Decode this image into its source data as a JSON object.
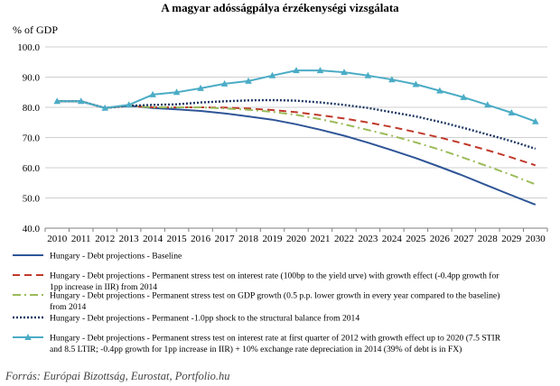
{
  "chart_data": {
    "type": "line",
    "title": "A magyar adósságpálya érzékenységi vizsgálata",
    "ylabel": "% of GDP",
    "xlabel": "",
    "ylim": [
      40.0,
      100.0
    ],
    "yticks": [
      "40.0",
      "50.0",
      "60.0",
      "70.0",
      "80.0",
      "90.0",
      "100.0"
    ],
    "ytick_values": [
      40,
      50,
      60,
      70,
      80,
      90,
      100
    ],
    "grid": true,
    "legend_position": "bottom",
    "x": [
      "2010",
      "2011",
      "2012",
      "2013",
      "2014",
      "2015",
      "2016",
      "2017",
      "2018",
      "2019",
      "2020",
      "2021",
      "2022",
      "2023",
      "2024",
      "2025",
      "2026",
      "2027",
      "2028",
      "2029",
      "2030"
    ],
    "series": [
      {
        "name": "Hungary - Debt projections - Baseline",
        "legend_lines": [
          "Hungary - Debt projections - Baseline"
        ],
        "color": "#2f5597",
        "style": "solid",
        "values": [
          82.0,
          82.0,
          79.8,
          80.5,
          79.8,
          79.3,
          78.8,
          78.0,
          77.0,
          75.9,
          74.4,
          72.6,
          70.6,
          68.3,
          65.8,
          63.2,
          60.3,
          57.3,
          54.1,
          50.9,
          47.8
        ]
      },
      {
        "name": "Hungary - Debt projections - Permanent stress test on interest rate (100bp to the yield urve) with growth effect (-0.4pp growth for 1pp increase in IIR) from 2014",
        "legend_lines": [
          "Hungary - Debt projections - Permanent stress test on interest rate (100bp to the yield urve) with growth effect (-0.4pp growth for",
          "1pp increase in IIR) from 2014"
        ],
        "color": "#c0392b",
        "style": "dashed",
        "values": [
          82.0,
          82.0,
          79.8,
          80.5,
          80.0,
          80.0,
          80.0,
          79.9,
          79.6,
          79.1,
          78.4,
          77.4,
          76.3,
          75.0,
          73.5,
          71.8,
          70.0,
          68.0,
          65.8,
          63.4,
          60.8
        ]
      },
      {
        "name": "Hungary - Debt projections - Permanent stress test on GDP growth (0.5 p.p. lower growth in every year compared to the baseline) from 2014",
        "legend_lines": [
          "Hungary - Debt projections - Permanent stress test on GDP growth (0.5 p.p. lower growth in every year compared to the baseline)",
          "from 2014"
        ],
        "color": "#9bbb59",
        "style": "dashdot",
        "values": [
          82.0,
          82.0,
          79.8,
          80.5,
          80.0,
          80.0,
          80.0,
          79.6,
          79.2,
          78.5,
          77.5,
          76.1,
          74.4,
          72.5,
          70.6,
          68.4,
          66.0,
          63.3,
          60.5,
          57.6,
          54.5
        ]
      },
      {
        "name": "Hungary - Debt projections - Permanent -1.0pp shock to the structural balance from 2014",
        "legend_lines": [
          "Hungary - Debt projections - Permanent -1.0pp shock to the structural balance from 2014"
        ],
        "color": "#1f3864",
        "style": "dotted",
        "values": [
          82.0,
          82.0,
          79.8,
          80.5,
          80.8,
          81.0,
          81.6,
          82.0,
          82.3,
          82.4,
          82.2,
          81.6,
          80.8,
          79.8,
          78.4,
          77.0,
          75.2,
          73.2,
          71.0,
          68.8,
          66.3
        ]
      },
      {
        "name": "Hungary - Debt projections - Permanent stress test on interest rate at first quarter of 2012 with growth effect up to 2020 (7.5 STIR and 8.5 LTIR; -0.4pp growth for 1pp increase in IIR) + 10% exchange rate depreciation in 2014 (39% of debt is in FX)",
        "legend_lines": [
          "Hungary - Debt projections - Permanent stress test on interest rate at first quarter of 2012 with growth effect up to 2020 (7.5 STIR",
          "and 8.5 LTIR; -0.4pp growth for 1pp increase in IIR) + 10% exchange rate depreciation in 2014 (39% of debt is in FX)"
        ],
        "color": "#4bacc6",
        "style": "solid-marker",
        "values": [
          82.0,
          82.0,
          79.8,
          80.8,
          84.2,
          85.0,
          86.3,
          87.8,
          88.7,
          90.5,
          92.2,
          92.2,
          91.6,
          90.5,
          89.2,
          87.6,
          85.5,
          83.3,
          80.8,
          78.2,
          75.3
        ]
      }
    ]
  },
  "source": "Forrás: Európai Bizottság, Eurostat, Portfolio.hu"
}
